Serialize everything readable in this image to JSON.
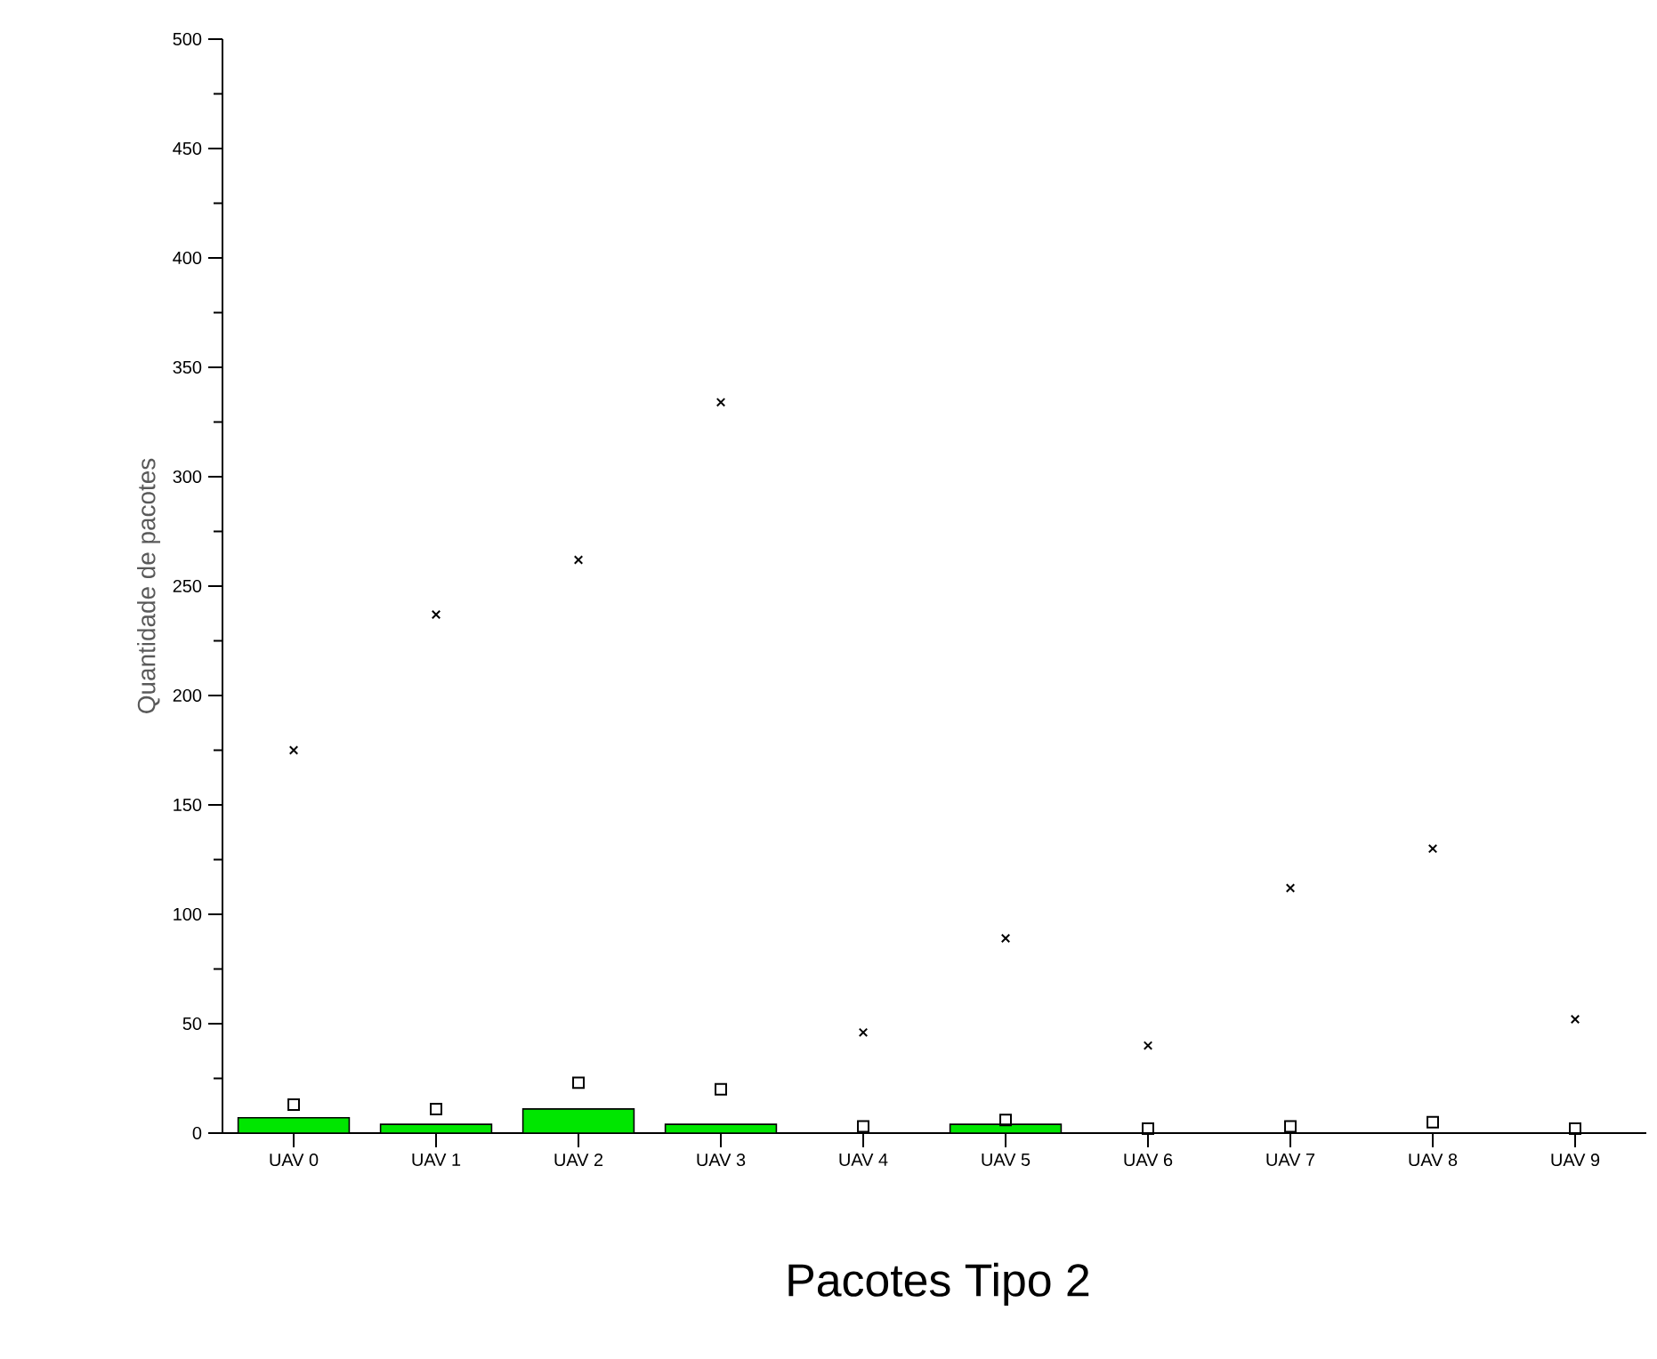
{
  "chart_data": {
    "type": "bar",
    "title": "Pacotes Tipo 2",
    "ylabel": "Quantidade de pacotes",
    "categories": [
      "UAV 0",
      "UAV 1",
      "UAV 2",
      "UAV 3",
      "UAV 4",
      "UAV 5",
      "UAV 6",
      "UAV 7",
      "UAV 8",
      "UAV 9"
    ],
    "series": [
      {
        "color": "#00e600",
        "values": [
          7,
          4,
          11,
          4,
          null,
          4,
          null,
          null,
          null,
          null
        ]
      },
      {
        "type": "scatter",
        "marker": "cross",
        "color": "#000000",
        "values": [
          175,
          237,
          262,
          334,
          46,
          89,
          40,
          112,
          130,
          52
        ]
      },
      {
        "type": "scatter",
        "marker": "square",
        "color": "#000000",
        "values": [
          13,
          11,
          23,
          20,
          3,
          6,
          2,
          3,
          5,
          2
        ]
      }
    ],
    "ylim": [
      0,
      500
    ],
    "yticks": [
      0,
      50,
      100,
      150,
      200,
      250,
      300,
      350,
      400,
      450,
      500
    ]
  }
}
